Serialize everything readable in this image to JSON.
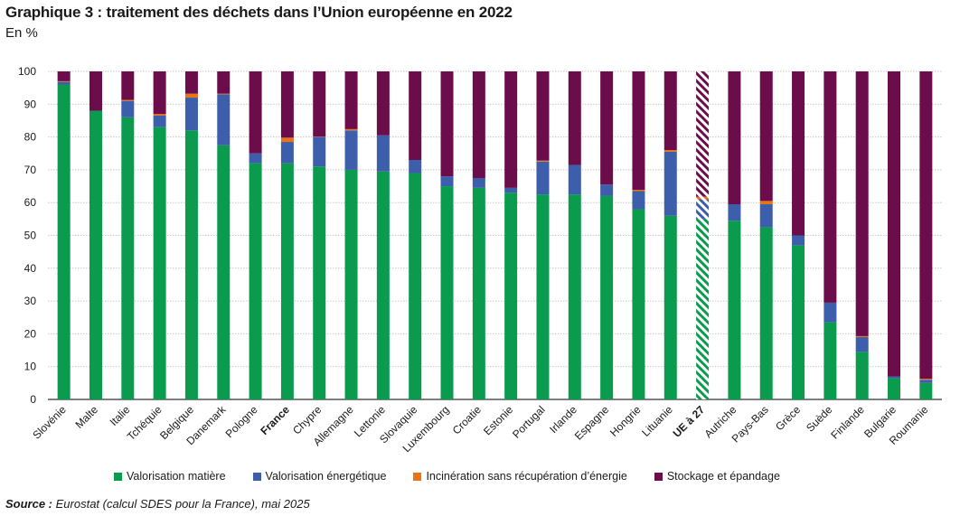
{
  "title": "Graphique 3 : traitement des déchets dans l’Union européenne en 2022",
  "subtitle": "En %",
  "source_label": "Source :",
  "source_text": " Eurostat (calcul SDES pour la France), mai 2025",
  "colors": {
    "valorisation_matiere": "#0b9b4e",
    "valorisation_energetique": "#3c5eab",
    "incineration": "#ec7315",
    "stockage": "#6b0d4a"
  },
  "chart_data": {
    "type": "bar",
    "stacked": true,
    "ylim": [
      0,
      100
    ],
    "yticks": [
      0,
      10,
      20,
      30,
      40,
      50,
      60,
      70,
      80,
      90,
      100
    ],
    "grid": true,
    "legend_position": "bottom",
    "categories": [
      "Slovénie",
      "Malte",
      "Italie",
      "Tchéquie",
      "Belgique",
      "Danemark",
      "Pologne",
      "France",
      "Chypre",
      "Allemagne",
      "Lettonie",
      "Slovaquie",
      "Luxembourg",
      "Croatie",
      "Estonie",
      "Portugal",
      "Irlande",
      "Espagne",
      "Hongrie",
      "Lituanie",
      "UE à 27",
      "Autriche",
      "Pays-Bas",
      "Grèce",
      "Suède",
      "Finlande",
      "Bulgarie",
      "Roumanie"
    ],
    "bold_categories": [
      "France",
      "UE à 27"
    ],
    "hatched_categories": [
      "UE à 27"
    ],
    "series": [
      {
        "name": "Valorisation matière",
        "color_key": "valorisation_matiere",
        "values": [
          96,
          88,
          86,
          83,
          82,
          77.5,
          72,
          72,
          71,
          70,
          69.5,
          69,
          65,
          64.5,
          63,
          62.5,
          62.5,
          62,
          58,
          56,
          55,
          54.5,
          52.5,
          47,
          23.5,
          14.5,
          6.5,
          5
        ]
      },
      {
        "name": "Valorisation énergétique",
        "color_key": "valorisation_energetique",
        "values": [
          0.8,
          0,
          5,
          3.5,
          10,
          15.5,
          3,
          6.5,
          9,
          12,
          11,
          4,
          3,
          3,
          1.5,
          10,
          9,
          3.5,
          5.5,
          19.5,
          6,
          5,
          7,
          3,
          6,
          4.5,
          0.5,
          1
        ]
      },
      {
        "name": "Incinération sans récupération d’énergie",
        "color_key": "incineration",
        "values": [
          0.2,
          0,
          0.3,
          0.5,
          1.2,
          0.2,
          0,
          1.3,
          0.1,
          0.4,
          0,
          0,
          0,
          0,
          0,
          0.3,
          0,
          0,
          0.4,
          0.5,
          0.8,
          0,
          1,
          0,
          0,
          0.3,
          0,
          0.3
        ]
      },
      {
        "name": "Stockage et épandage",
        "color_key": "stockage",
        "values": [
          3,
          12,
          8.7,
          13,
          6.8,
          6.8,
          25,
          20.2,
          19.9,
          17.6,
          19.5,
          27,
          32,
          32.5,
          35.5,
          27.2,
          28.5,
          34.5,
          36.1,
          24,
          38.2,
          40.5,
          39.5,
          50,
          70.5,
          80.7,
          93,
          93.7
        ]
      }
    ]
  },
  "legend": [
    {
      "label": "Valorisation matière",
      "color_key": "valorisation_matiere"
    },
    {
      "label": "Valorisation énergétique",
      "color_key": "valorisation_energetique"
    },
    {
      "label": "Incinération sans récupération d’énergie",
      "color_key": "incineration"
    },
    {
      "label": "Stockage et épandage",
      "color_key": "stockage"
    }
  ]
}
